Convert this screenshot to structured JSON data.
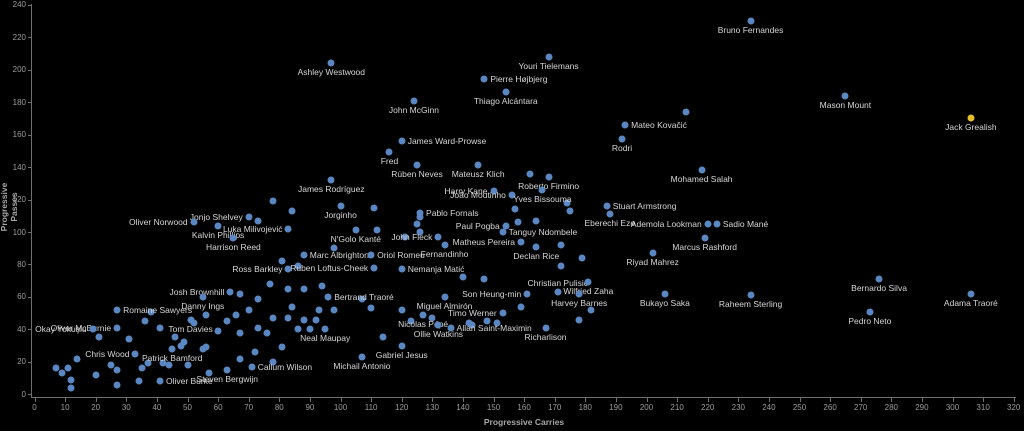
{
  "chart_data": {
    "type": "scatter",
    "title": "",
    "xlabel": "Progressive Carries",
    "ylabel": "Progressive Passes",
    "xlim": [
      0,
      320
    ],
    "ylim": [
      0,
      240
    ],
    "grid": false,
    "legend": "none",
    "x_ticks": [
      0,
      10,
      20,
      30,
      40,
      50,
      60,
      70,
      80,
      90,
      100,
      110,
      120,
      130,
      140,
      150,
      160,
      170,
      180,
      190,
      200,
      210,
      220,
      230,
      240,
      250,
      260,
      270,
      280,
      290,
      300,
      310,
      320
    ],
    "y_ticks": [
      0,
      20,
      40,
      60,
      80,
      100,
      120,
      140,
      160,
      180,
      200,
      220,
      240
    ],
    "colors": {
      "background": "#000000",
      "dot": "#5a87c2",
      "highlight_dot": "#e6be2a",
      "player_label": "#d6d6d6",
      "axis": "#6f6f6f",
      "tick_label": "#9b9b9b",
      "axis_title": "#a8a8a8"
    },
    "points": [
      {
        "name": "Ashley Westwood",
        "x": 97,
        "y": 204,
        "pos": "below"
      },
      {
        "name": "Youri Tielemans",
        "x": 168,
        "y": 208,
        "pos": "below"
      },
      {
        "name": "Bruno Fernandes",
        "x": 234,
        "y": 230,
        "pos": "below"
      },
      {
        "name": "Pierre Højbjerg",
        "x": 147,
        "y": 194,
        "pos": "right"
      },
      {
        "name": "Thiago Alcántara",
        "x": 154,
        "y": 186,
        "pos": "below"
      },
      {
        "name": "John McGinn",
        "x": 124,
        "y": 181,
        "pos": "below"
      },
      {
        "name": "Mason Mount",
        "x": 265,
        "y": 184,
        "pos": "below"
      },
      {
        "name": "Jack Grealish",
        "x": 306,
        "y": 170,
        "pos": "below",
        "highlight": true
      },
      {
        "name": "Mateo Kovačić",
        "x": 193,
        "y": 166,
        "pos": "right"
      },
      {
        "name": "Rodri",
        "x": 192,
        "y": 157,
        "pos": "below"
      },
      {
        "name": "James Ward-Prowse",
        "x": 120,
        "y": 156,
        "pos": "right"
      },
      {
        "name": "Fred",
        "x": 116,
        "y": 149,
        "pos": "below"
      },
      {
        "name": "Rúben Neves",
        "x": 125,
        "y": 141,
        "pos": "below"
      },
      {
        "name": "Mateusz Klich",
        "x": 145,
        "y": 141,
        "pos": "below"
      },
      {
        "name": "Mohamed Salah",
        "x": 218,
        "y": 138,
        "pos": "below"
      },
      {
        "name": "James Rodríguez",
        "x": 97,
        "y": 132,
        "pos": "below"
      },
      {
        "name": "Roberto Firmino",
        "x": 168,
        "y": 134,
        "pos": "below"
      },
      {
        "name": "Harry Kane",
        "x": 150,
        "y": 125,
        "pos": "left"
      },
      {
        "name": "João Moutinho",
        "x": 156,
        "y": 123,
        "pos": "left"
      },
      {
        "name": "Yves Bissouma",
        "x": 166,
        "y": 126,
        "pos": "below"
      },
      {
        "name": "Jorginho",
        "x": 100,
        "y": 116,
        "pos": "below"
      },
      {
        "name": "Pablo Fornals",
        "x": 126,
        "y": 112,
        "pos": "right"
      },
      {
        "name": "Stuart Armstrong",
        "x": 187,
        "y": 116,
        "pos": "right"
      },
      {
        "name": "Eberechi Eze",
        "x": 188,
        "y": 111,
        "pos": "below"
      },
      {
        "name": "Paul Pogba",
        "x": 154,
        "y": 104,
        "pos": "left"
      },
      {
        "name": "Tanguy Ndombele",
        "x": 153,
        "y": 100,
        "pos": "right"
      },
      {
        "name": "N'Golo Kanté",
        "x": 105,
        "y": 101,
        "pos": "below"
      },
      {
        "name": "John Fleck",
        "x": 132,
        "y": 97,
        "pos": "left"
      },
      {
        "name": "Fernandinho",
        "x": 134,
        "y": 92,
        "pos": "below"
      },
      {
        "name": "Matheus Pereira",
        "x": 159,
        "y": 94,
        "pos": "left"
      },
      {
        "name": "Declan Rice",
        "x": 164,
        "y": 91,
        "pos": "below"
      },
      {
        "name": "Ademola Lookman",
        "x": 220,
        "y": 105,
        "pos": "left"
      },
      {
        "name": "Sadio Mané",
        "x": 223,
        "y": 105,
        "pos": "right"
      },
      {
        "name": "Marcus Rashford",
        "x": 219,
        "y": 96,
        "pos": "below"
      },
      {
        "name": "Riyad Mahrez",
        "x": 202,
        "y": 87,
        "pos": "below"
      },
      {
        "name": "Marc Albrighton",
        "x": 88,
        "y": 86,
        "pos": "right"
      },
      {
        "name": "Oriol Romeu",
        "x": 110,
        "y": 86,
        "pos": "right"
      },
      {
        "name": "Ruben Loftus-Cheek",
        "x": 111,
        "y": 78,
        "pos": "left"
      },
      {
        "name": "Nemanja Matić",
        "x": 120,
        "y": 77,
        "pos": "right"
      },
      {
        "name": "Ross Barkley",
        "x": 83,
        "y": 77,
        "pos": "left"
      },
      {
        "name": "Jonjo Shelvey",
        "x": 70,
        "y": 109,
        "pos": "left"
      },
      {
        "name": "Oliver Norwood",
        "x": 52,
        "y": 106,
        "pos": "left"
      },
      {
        "name": "Kalvin Phillips",
        "x": 60,
        "y": 104,
        "pos": "below"
      },
      {
        "name": "Luka Milivojević",
        "x": 83,
        "y": 102,
        "pos": "left"
      },
      {
        "name": "Harrison Reed",
        "x": 65,
        "y": 96,
        "pos": "below"
      },
      {
        "name": "Josh Brownhill",
        "x": 64,
        "y": 63,
        "pos": "left"
      },
      {
        "name": "Bertrand Traoré",
        "x": 96,
        "y": 60,
        "pos": "right"
      },
      {
        "name": "Danny Ings",
        "x": 55,
        "y": 60,
        "pos": "below"
      },
      {
        "name": "Romaine Sawyers",
        "x": 27,
        "y": 52,
        "pos": "right"
      },
      {
        "name": "Tom Davies",
        "x": 51,
        "y": 46,
        "pos": "below"
      },
      {
        "name": "Oliver McBurnie",
        "x": 27,
        "y": 41,
        "pos": "left"
      },
      {
        "name": "Okay Yokuşlu",
        "x": 19,
        "y": 40,
        "pos": "left"
      },
      {
        "name": "Chris Wood",
        "x": 33,
        "y": 25,
        "pos": "left"
      },
      {
        "name": "Patrick Bamford",
        "x": 45,
        "y": 28,
        "pos": "below"
      },
      {
        "name": "Oliver Burke",
        "x": 41,
        "y": 8,
        "pos": "right"
      },
      {
        "name": "Callum Wilson",
        "x": 71,
        "y": 17,
        "pos": "right"
      },
      {
        "name": "Steven Bergwijn",
        "x": 63,
        "y": 15,
        "pos": "below"
      },
      {
        "name": "Michail Antonio",
        "x": 107,
        "y": 23,
        "pos": "below"
      },
      {
        "name": "Gabriel Jesus",
        "x": 120,
        "y": 30,
        "pos": "below"
      },
      {
        "name": "Neal Maupay",
        "x": 95,
        "y": 40,
        "pos": "below"
      },
      {
        "name": "Nicolas Pépé",
        "x": 127,
        "y": 49,
        "pos": "below"
      },
      {
        "name": "Miguel Almirón",
        "x": 134,
        "y": 60,
        "pos": "below"
      },
      {
        "name": "Ollie Watkins",
        "x": 132,
        "y": 43,
        "pos": "below"
      },
      {
        "name": "Allan Saint-Maximin",
        "x": 136,
        "y": 41,
        "pos": "right"
      },
      {
        "name": "Timo Werner",
        "x": 153,
        "y": 50,
        "pos": "left"
      },
      {
        "name": "Son Heung-min",
        "x": 161,
        "y": 62,
        "pos": "left"
      },
      {
        "name": "Richarlison",
        "x": 167,
        "y": 41,
        "pos": "below"
      },
      {
        "name": "Christian Pulisic",
        "x": 171,
        "y": 63,
        "pos": "above"
      },
      {
        "name": "Wilfried Zaha",
        "x": 181,
        "y": 69,
        "pos": "below"
      },
      {
        "name": "Harvey Barnes",
        "x": 178,
        "y": 62,
        "pos": "below"
      },
      {
        "name": "Bukayo Saka",
        "x": 206,
        "y": 62,
        "pos": "below"
      },
      {
        "name": "Raheem Sterling",
        "x": 234,
        "y": 61,
        "pos": "below"
      },
      {
        "name": "Bernardo Silva",
        "x": 276,
        "y": 71,
        "pos": "below"
      },
      {
        "name": "Pedro Neto",
        "x": 273,
        "y": 51,
        "pos": "below"
      },
      {
        "name": "Adama Traoré",
        "x": 306,
        "y": 62,
        "pos": "below"
      }
    ],
    "unlabeled_points": [
      [
        213,
        174
      ],
      [
        162,
        136
      ],
      [
        174,
        118
      ],
      [
        175,
        113
      ],
      [
        157,
        114
      ],
      [
        164,
        107
      ],
      [
        158,
        106
      ],
      [
        172,
        92
      ],
      [
        179,
        84
      ],
      [
        172,
        79
      ],
      [
        147,
        71
      ],
      [
        140,
        72
      ],
      [
        111,
        115
      ],
      [
        84,
        113
      ],
      [
        78,
        119
      ],
      [
        98,
        90
      ],
      [
        73,
        107
      ],
      [
        86,
        79
      ],
      [
        81,
        82
      ],
      [
        77,
        68
      ],
      [
        83,
        65
      ],
      [
        88,
        65
      ],
      [
        67,
        62
      ],
      [
        73,
        59
      ],
      [
        84,
        54
      ],
      [
        93,
        52
      ],
      [
        78,
        47
      ],
      [
        92,
        46
      ],
      [
        36,
        45
      ],
      [
        38,
        51
      ],
      [
        41,
        41
      ],
      [
        21,
        35
      ],
      [
        31,
        34
      ],
      [
        14,
        22
      ],
      [
        7,
        16
      ],
      [
        9,
        13
      ],
      [
        11,
        16
      ],
      [
        12,
        9
      ],
      [
        12,
        4
      ],
      [
        20,
        12
      ],
      [
        25,
        18
      ],
      [
        27,
        15
      ],
      [
        27,
        6
      ],
      [
        35,
        16
      ],
      [
        34,
        8
      ],
      [
        37,
        19
      ],
      [
        42,
        19
      ],
      [
        44,
        18
      ],
      [
        46,
        35
      ],
      [
        48,
        30
      ],
      [
        49,
        32
      ],
      [
        50,
        18
      ],
      [
        52,
        44
      ],
      [
        55,
        28
      ],
      [
        56,
        29
      ],
      [
        56,
        49
      ],
      [
        57,
        13
      ],
      [
        60,
        39
      ],
      [
        63,
        45
      ],
      [
        66,
        49
      ],
      [
        67,
        38
      ],
      [
        67,
        22
      ],
      [
        70,
        52
      ],
      [
        72,
        26
      ],
      [
        73,
        41
      ],
      [
        76,
        38
      ],
      [
        78,
        20
      ],
      [
        81,
        29
      ],
      [
        83,
        47
      ],
      [
        86,
        40
      ],
      [
        88,
        46
      ],
      [
        90,
        40
      ],
      [
        98,
        52
      ],
      [
        94,
        67
      ],
      [
        107,
        59
      ],
      [
        110,
        53
      ],
      [
        114,
        35
      ],
      [
        120,
        52
      ],
      [
        123,
        45
      ],
      [
        130,
        47
      ],
      [
        142,
        44
      ],
      [
        143,
        43
      ],
      [
        148,
        45
      ],
      [
        151,
        44
      ],
      [
        159,
        54
      ],
      [
        178,
        46
      ],
      [
        182,
        52
      ],
      [
        126,
        109
      ],
      [
        125,
        105
      ],
      [
        126,
        100
      ],
      [
        121,
        97
      ],
      [
        112,
        101
      ]
    ]
  }
}
